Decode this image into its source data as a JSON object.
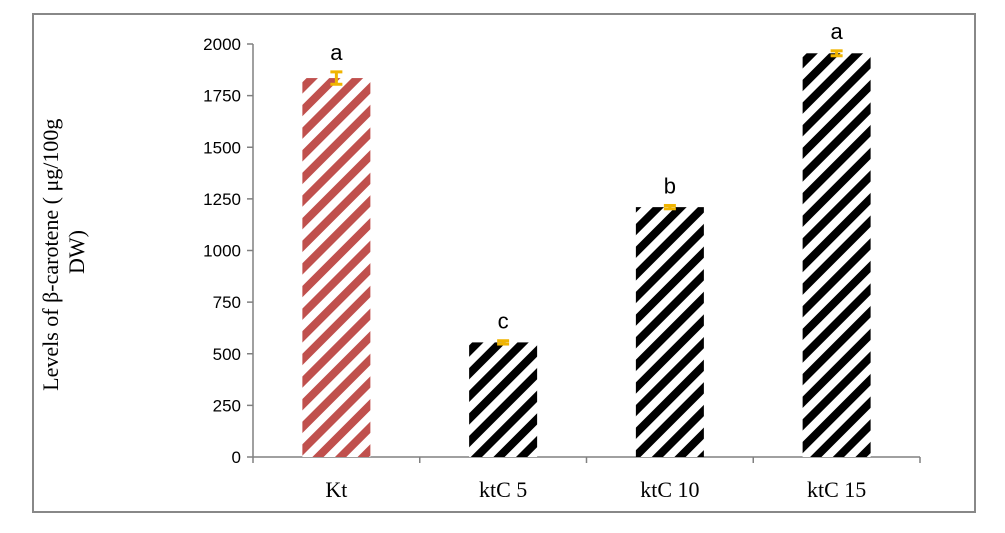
{
  "chart_data": {
    "type": "bar",
    "categories": [
      "Kt",
      "ktC 5",
      "ktC 10",
      "ktC 15"
    ],
    "values": [
      1835,
      555,
      1210,
      1955
    ],
    "errors": [
      30,
      8,
      8,
      12
    ],
    "significance": [
      "a",
      "c",
      "b",
      "a"
    ],
    "ylabel_line1": "Levels of β-carotene ( μg/100g",
    "ylabel_line2": "DW)",
    "ylim": [
      0,
      2000
    ],
    "yticks": [
      "0",
      "250",
      "500",
      "750",
      "1000",
      "1250",
      "1500",
      "1750",
      "2000"
    ],
    "bar_colors": [
      "#c0504d",
      "#000000",
      "#000000",
      "#000000"
    ],
    "error_color": "#f0b400",
    "grid": false,
    "legend": "none"
  }
}
